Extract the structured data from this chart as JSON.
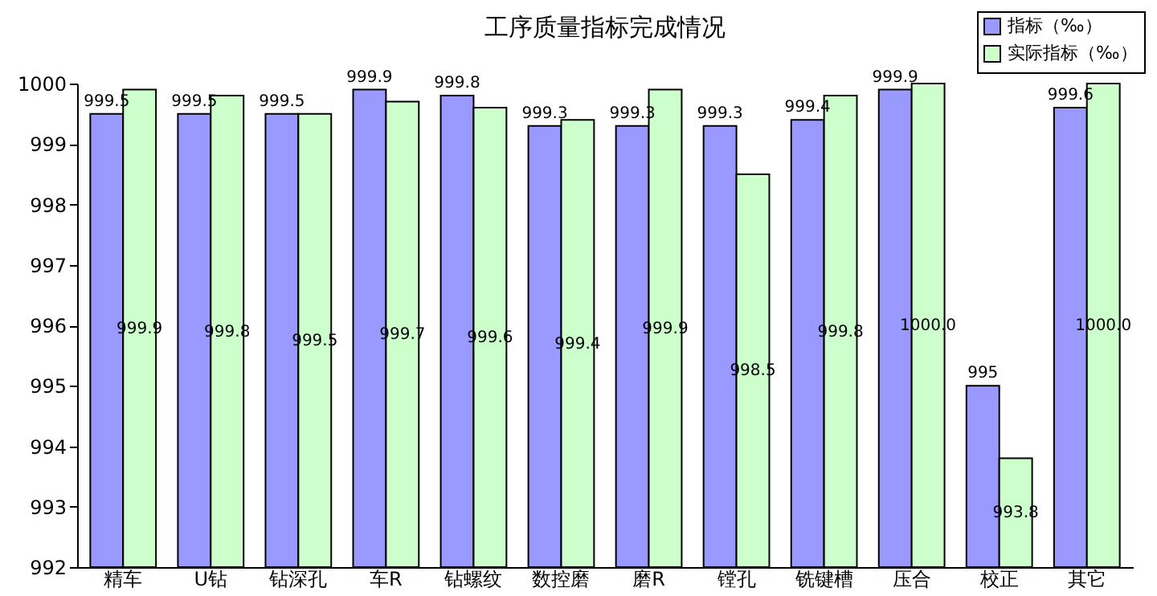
{
  "chart_data": {
    "type": "bar",
    "title": "工序质量指标完成情况",
    "categories": [
      "精车",
      "U钻",
      "钻深孔",
      "车R",
      "钻螺纹",
      "数控磨",
      "磨R",
      "镗孔",
      "铣键槽",
      "压合",
      "校正",
      "其它"
    ],
    "series": [
      {
        "name": "指标（‰）",
        "color": "#9999ff",
        "values": [
          999.5,
          999.5,
          999.5,
          999.9,
          999.8,
          999.3,
          999.3,
          999.3,
          999.4,
          999.9,
          995,
          999.6
        ],
        "value_labels": [
          "999.5",
          "999.5",
          "999.5",
          "999.9",
          "999.8",
          "999.3",
          "999.3",
          "999.3",
          "999.4",
          "999.9",
          "995",
          "999.6"
        ]
      },
      {
        "name": "实际指标（‰）",
        "color": "#ccffcc",
        "values": [
          999.9,
          999.8,
          999.5,
          999.7,
          999.6,
          999.4,
          999.9,
          998.5,
          999.8,
          1000.0,
          993.8,
          1000.0
        ],
        "value_labels": [
          "999.9",
          "999.8",
          "999.5",
          "999.7",
          "999.6",
          "999.4",
          "999.9",
          "998.5",
          "999.8",
          "1000.0",
          "993.8",
          "1000.0"
        ]
      }
    ],
    "ylim": [
      992,
      1000
    ],
    "yticks": [
      992,
      993,
      994,
      995,
      996,
      997,
      998,
      999,
      1000
    ],
    "grid": false,
    "legend": "top right"
  }
}
